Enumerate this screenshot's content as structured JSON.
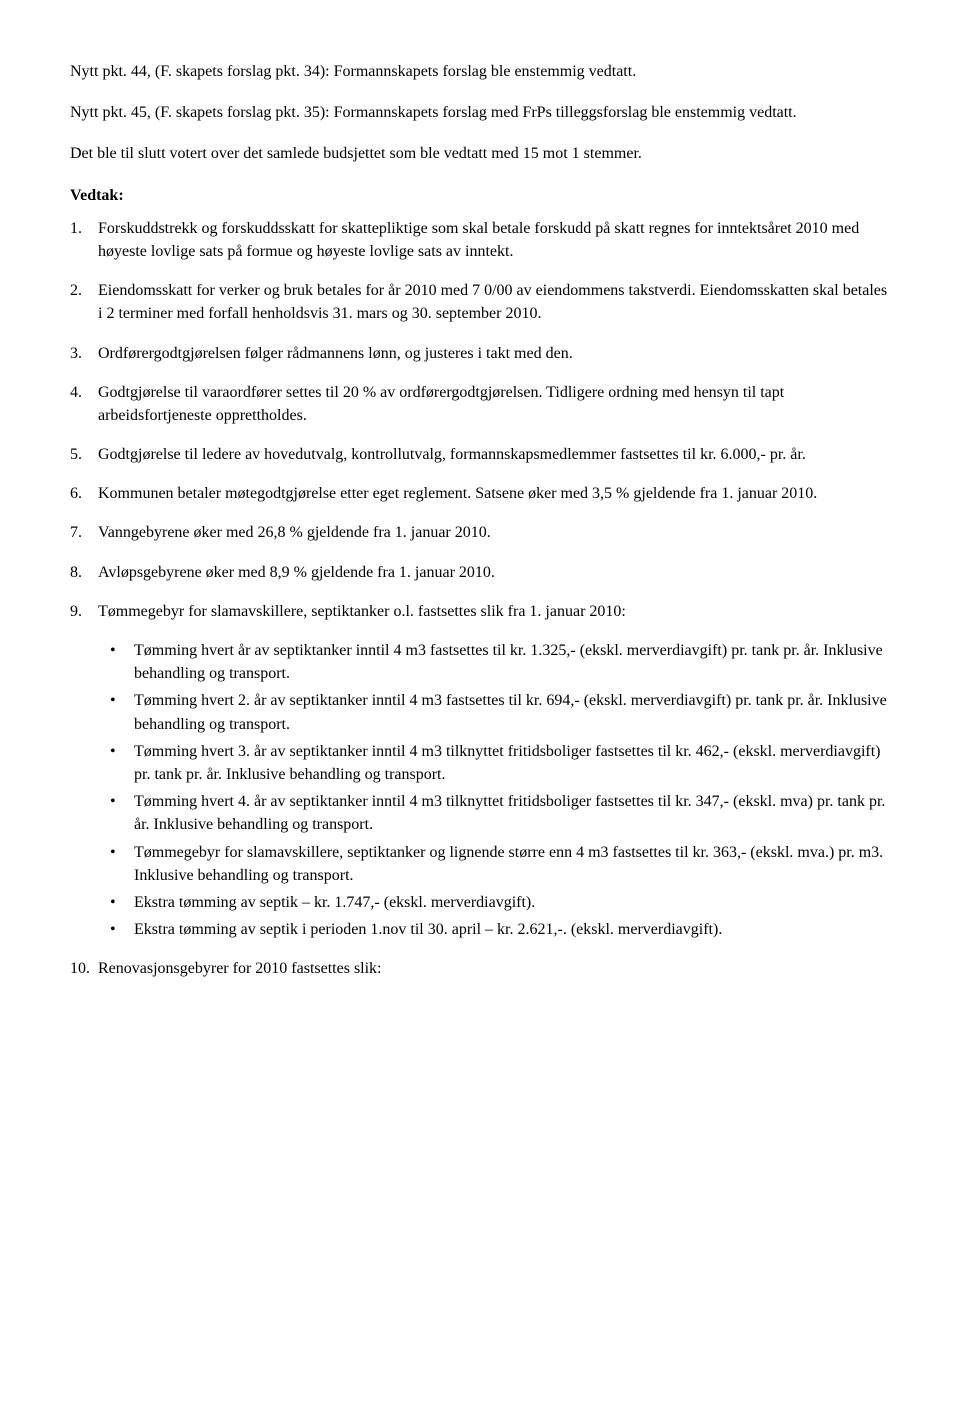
{
  "intro": {
    "p1": "Nytt pkt. 44, (F. skapets forslag pkt. 34):  Formannskapets forslag ble enstemmig vedtatt.",
    "p2": "Nytt pkt. 45, (F. skapets forslag pkt. 35): Formannskapets forslag med FrPs tilleggsforslag ble enstemmig vedtatt.",
    "p3": "Det ble til slutt votert over det samlede budsjettet som ble vedtatt med 15 mot 1 stemmer."
  },
  "vedtak_label": "Vedtak:",
  "items": [
    {
      "num": "1.",
      "text": "Forskuddstrekk og forskuddsskatt for skattepliktige som skal betale forskudd på skatt regnes for inntektsåret 2010 med høyeste lovlige sats på formue og høyeste lovlige sats av inntekt."
    },
    {
      "num": "2.",
      "text": "Eiendomsskatt for verker og bruk betales for år 2010 med 7 0/00 av eiendommens takstverdi. Eiendomsskatten skal betales i 2 terminer med forfall henholdsvis 31. mars og 30. september 2010."
    },
    {
      "num": "3.",
      "text": "Ordførergodtgjørelsen følger rådmannens lønn, og justeres i takt med den."
    },
    {
      "num": "4.",
      "text": "Godtgjørelse til varaordfører settes til 20 % av ordførergodtgjørelsen. Tidligere ordning med hensyn til tapt arbeidsfortjeneste opprettholdes."
    },
    {
      "num": "5.",
      "text": "Godtgjørelse til ledere av hovedutvalg, kontrollutvalg, formannskapsmedlemmer fastsettes til kr.  6.000,- pr. år."
    },
    {
      "num": "6.",
      "text": "Kommunen betaler møtegodtgjørelse etter eget reglement. Satsene øker med 3,5 % gjeldende fra 1. januar 2010."
    },
    {
      "num": "7.",
      "text": "Vanngebyrene øker med 26,8 % gjeldende fra 1. januar 2010."
    },
    {
      "num": "8.",
      "text": "Avløpsgebyrene øker med 8,9 % gjeldende fra 1. januar 2010."
    },
    {
      "num": "9.",
      "text": "Tømmegebyr for slamavskillere, septiktanker o.l. fastsettes slik fra 1. januar 2010:"
    }
  ],
  "bullets": [
    "Tømming hvert år av septiktanker inntil 4 m3 fastsettes til kr. 1.325,- (ekskl. merverdiavgift) pr. tank pr. år. Inklusive behandling og transport.",
    "Tømming hvert 2. år av septiktanker inntil 4 m3 fastsettes til kr. 694,- (ekskl. merverdiavgift) pr. tank pr. år. Inklusive behandling og transport.",
    "Tømming hvert 3. år av septiktanker inntil 4 m3 tilknyttet fritidsboliger fastsettes til kr. 462,- (ekskl. merverdiavgift) pr. tank pr. år. Inklusive behandling og transport.",
    "Tømming hvert 4. år av septiktanker inntil 4 m3 tilknyttet fritidsboliger fastsettes til kr. 347,- (ekskl. mva) pr. tank pr. år. Inklusive behandling og transport.",
    "Tømmegebyr for slamavskillere, septiktanker og lignende større enn 4 m3 fastsettes til kr. 363,- (ekskl. mva.) pr. m3. Inklusive behandling og transport.",
    "Ekstra tømming av septik – kr. 1.747,- (ekskl. merverdiavgift).",
    "Ekstra tømming av septik i perioden 1.nov til 30. april – kr. 2.621,-. (ekskl. merverdiavgift)."
  ],
  "final": {
    "num": "10.",
    "text": "Renovasjonsgebyrer for 2010 fastsettes slik:"
  }
}
